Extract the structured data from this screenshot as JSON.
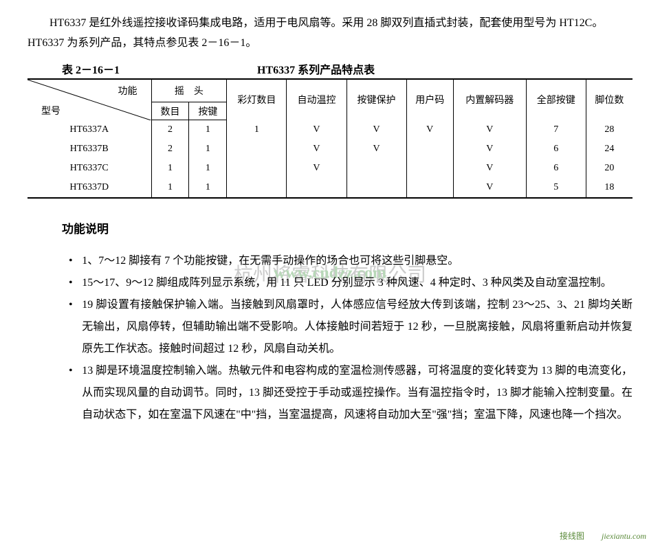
{
  "intro": "HT6337 是红外线遥控接收译码集成电路，适用于电风扇等。采用 28 脚双列直插式封装，配套使用型号为 HT12C。HT6337 为系列产品，其特点参见表 2－16－1。",
  "table_number": "表 2－16－1",
  "table_title": "HT6337 系列产品特点表",
  "diag_top": "功能",
  "diag_bottom": "型号",
  "headers": {
    "swing_group": "摇　头",
    "swing_count": "数目",
    "swing_key": "按键",
    "light_count": "彩灯数目",
    "auto_temp": "自动温控",
    "key_protect": "按键保护",
    "user_code": "用户码",
    "builtin_decoder": "内置解码器",
    "all_keys": "全部按键",
    "pin_count": "脚位数"
  },
  "rows": [
    {
      "model": "HT6337A",
      "swing_count": "2",
      "swing_key": "1",
      "light": "1",
      "auto_temp": "V",
      "key_protect": "V",
      "user_code": "V",
      "decoder": "V",
      "all_keys": "7",
      "pins": "28"
    },
    {
      "model": "HT6337B",
      "swing_count": "2",
      "swing_key": "1",
      "light": "",
      "auto_temp": "V",
      "key_protect": "V",
      "user_code": "",
      "decoder": "V",
      "all_keys": "6",
      "pins": "24"
    },
    {
      "model": "HT6337C",
      "swing_count": "1",
      "swing_key": "1",
      "light": "",
      "auto_temp": "V",
      "key_protect": "",
      "user_code": "",
      "decoder": "V",
      "all_keys": "6",
      "pins": "20"
    },
    {
      "model": "HT6337D",
      "swing_count": "1",
      "swing_key": "1",
      "light": "",
      "auto_temp": "",
      "key_protect": "",
      "user_code": "",
      "decoder": "V",
      "all_keys": "5",
      "pins": "18"
    }
  ],
  "section_title": "功能说明",
  "bullets": [
    "1、7～12 脚接有 7 个功能按键，在无需手动操作的场合也可将这些引脚悬空。",
    "15～17、9～12 脚组成阵列显示系统，用 11 只 LED 分别显示 3 种风速、4 种定时、3 种风类及自动室温控制。",
    "19 脚设置有接触保护输入端。当接触到风扇罩时，人体感应信号经放大传到该端，控制 23～25、3、21 脚均关断无输出，风扇停转，但辅助输出端不受影响。人体接触时间若短于 12 秒，一旦脱离接触，风扇将重新启动并恢复原先工作状态。接触时间超过 12 秒，风扇自动关机。",
    "13 脚是环境温度控制输入端。热敏元件和电容构成的室温检测传感器，可将温度的变化转变为 13 脚的电流变化，从而实现风量的自动调节。同时，13 脚还受控于手动或遥控操作。当有温控指令时，13 脚才能输入控制变量。在自动状态下，如在室温下风速在\"中\"挡，当室温提高，风速将自动加大至\"强\"挡；室温下降，风速也降一个挡次。"
  ],
  "watermark_text": "杭州将睿科技有限公司",
  "watermark_url": "www.cndzz.com",
  "footer_text1": "接线图",
  "footer_text2": "jiexiantu.com",
  "colors": {
    "text": "#000000",
    "bg": "#ffffff",
    "watermark": "#cccccc",
    "watermark_url": "#b8d8b8",
    "footer_green": "#5a8a3a"
  }
}
